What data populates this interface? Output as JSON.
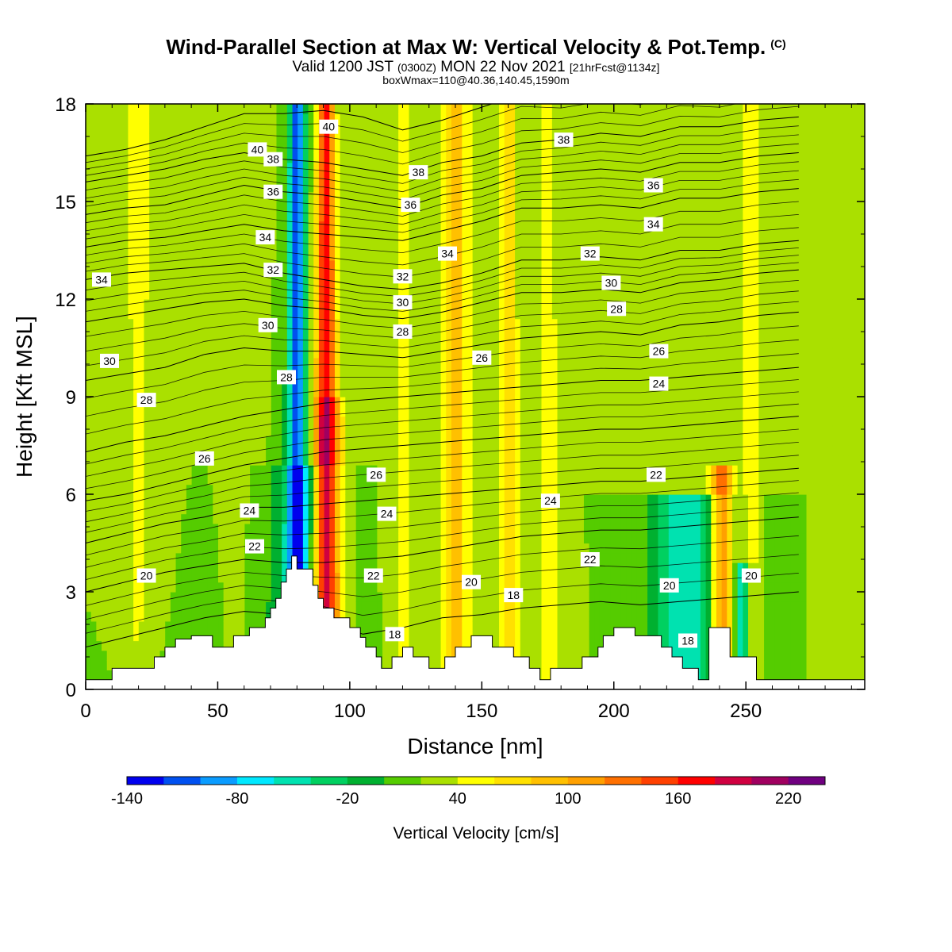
{
  "header": {
    "title": "Wind-Parallel Section at Max W: Vertical Velocity & Pot.Temp.",
    "copyright": "(C)",
    "valid_a": "Valid 1200 JST",
    "valid_z": "(0300Z)",
    "valid_b": "MON 22 Nov 2021",
    "forecast": "[21hrFcst@1134z]",
    "boxinfo": "boxWmax=110@40.36,140.45,1590m"
  },
  "chart_data": {
    "type": "heatmap",
    "xlabel": "Distance [nm]",
    "ylabel": "Height [Kft MSL]",
    "xlim": [
      0,
      295
    ],
    "ylim": [
      0,
      18
    ],
    "xticks": [
      "0",
      "50",
      "100",
      "150",
      "200",
      "250"
    ],
    "yticks": [
      "0",
      "3",
      "6",
      "9",
      "12",
      "15",
      "18"
    ],
    "colorbar": {
      "label": "Vertical Velocity [cm/s]",
      "tick_labels": [
        "-140",
        "-80",
        "-20",
        "40",
        "100",
        "160",
        "220"
      ],
      "tick_values": [
        -140,
        -80,
        -20,
        40,
        100,
        160,
        220
      ],
      "levels": [
        -140,
        -120,
        -100,
        -80,
        -60,
        -40,
        -20,
        0,
        20,
        40,
        60,
        80,
        100,
        120,
        140,
        160,
        180,
        200,
        220,
        240
      ],
      "colors": [
        "#0000ee",
        "#0050f0",
        "#0a9cff",
        "#00e8ff",
        "#00e2b0",
        "#00d060",
        "#00b030",
        "#55cc00",
        "#aae000",
        "#ffff00",
        "#ffe000",
        "#ffc000",
        "#ffa000",
        "#ff7000",
        "#ff4000",
        "#ff0000",
        "#d00040",
        "#a00060",
        "#700080"
      ]
    },
    "background_w": 20,
    "w_bands": [
      {
        "x": 20,
        "w": 28,
        "b0": 2,
        "b1": 14,
        "top": 18
      },
      {
        "x": 55,
        "w": 6,
        "b0": 4,
        "b1": 4,
        "top": 18
      },
      {
        "x": 57,
        "w": 22,
        "b0": 2,
        "b1": 8,
        "top": 18
      },
      {
        "x": 80,
        "w": -125,
        "b0": 4,
        "b1": 3,
        "top": 18
      },
      {
        "x": 83,
        "w": -40,
        "b0": 16,
        "b1": 10,
        "top": 7
      },
      {
        "x": 91,
        "w": 160,
        "b0": 5,
        "b1": 3,
        "top": 18
      },
      {
        "x": 93,
        "w": 50,
        "b0": 8,
        "b1": 4,
        "top": 9
      },
      {
        "x": 120,
        "w": 30,
        "b0": 5,
        "b1": 5,
        "top": 18
      },
      {
        "x": 140,
        "w": 80,
        "b0": 4,
        "b1": 4,
        "top": 18
      },
      {
        "x": 148,
        "w": 20,
        "b0": 4,
        "b1": 4,
        "top": 18
      },
      {
        "x": 160,
        "w": 65,
        "b0": 4,
        "b1": 3,
        "top": 18
      },
      {
        "x": 175,
        "w": 30,
        "b0": 8,
        "b1": 5,
        "top": 18
      },
      {
        "x": 212,
        "w": 20,
        "b0": 5,
        "b1": 5,
        "top": 18
      },
      {
        "x": 226,
        "w": -65,
        "b0": 16,
        "b1": 16,
        "top": 6
      },
      {
        "x": 241,
        "w": 130,
        "b0": 4,
        "b1": 4,
        "top": 7
      },
      {
        "x": 249,
        "w": -75,
        "b0": 3,
        "b1": 3,
        "top": 4
      },
      {
        "x": 252,
        "w": 45,
        "b0": 3,
        "b1": 3,
        "top": 18
      },
      {
        "x": 285,
        "w": 20,
        "b0": 5,
        "b1": 5,
        "top": 18
      }
    ],
    "terrain": {
      "x": [
        0,
        10,
        10,
        26,
        26,
        30,
        30,
        34,
        34,
        40,
        40,
        48,
        48,
        56,
        56,
        62,
        62,
        68,
        68,
        70,
        70,
        72,
        72,
        74,
        74,
        76,
        76,
        78,
        78,
        80,
        80,
        86,
        86,
        88,
        88,
        90,
        90,
        94,
        94,
        100,
        100,
        104,
        104,
        106,
        106,
        110,
        110,
        112,
        112,
        116,
        116,
        120,
        120,
        124,
        124,
        130,
        130,
        136,
        136,
        140,
        140,
        146,
        146,
        154,
        154,
        162,
        162,
        168,
        168,
        172,
        172,
        176,
        176,
        188,
        188,
        194,
        194,
        196,
        196,
        200,
        200,
        208,
        208,
        218,
        218,
        222,
        222,
        226,
        226,
        232,
        232,
        236,
        236,
        244,
        244,
        254,
        254,
        258,
        258,
        295
      ],
      "y": [
        0.3,
        0.3,
        0.65,
        0.65,
        1.0,
        1.0,
        1.3,
        1.3,
        1.55,
        1.55,
        1.65,
        1.65,
        1.3,
        1.3,
        1.65,
        1.65,
        1.9,
        1.9,
        2.2,
        2.2,
        2.5,
        2.5,
        2.8,
        2.8,
        3.3,
        3.3,
        3.7,
        3.7,
        4.1,
        4.1,
        3.7,
        3.7,
        3.2,
        3.2,
        2.8,
        2.8,
        2.5,
        2.5,
        2.2,
        2.2,
        1.9,
        1.9,
        1.6,
        1.6,
        1.3,
        1.3,
        1.0,
        1.0,
        0.65,
        0.65,
        1.0,
        1.0,
        1.3,
        1.3,
        1.0,
        1.0,
        0.65,
        0.65,
        1.0,
        1.0,
        1.3,
        1.3,
        1.65,
        1.65,
        1.3,
        1.3,
        1.0,
        1.0,
        0.65,
        0.65,
        0.3,
        0.3,
        0.65,
        0.65,
        1.0,
        1.0,
        1.3,
        1.3,
        1.65,
        1.65,
        1.9,
        1.9,
        1.65,
        1.65,
        1.3,
        1.3,
        1.0,
        1.0,
        0.65,
        0.65,
        0.3,
        0.3,
        1.9,
        1.9,
        1.0,
        1.0,
        0.3,
        0.3,
        0.3,
        0.3
      ]
    },
    "theta_contours": [
      {
        "label": "40",
        "y": [
          16.4,
          16.6,
          16.9,
          17.3,
          17.7,
          17.7,
          17.8,
          17.6,
          17.2,
          17.5,
          17.9,
          18.3,
          18.2,
          18.4,
          18.3,
          18.6,
          18.5,
          18.8,
          18.9
        ]
      },
      {
        "label": "38",
        "y": [
          15.6,
          15.8,
          16.0,
          16.3,
          16.5,
          16.3,
          16.2,
          16.0,
          15.8,
          16.2,
          16.4,
          16.8,
          16.9,
          17.1,
          17.0,
          17.3,
          17.3,
          17.5,
          17.6
        ]
      },
      {
        "label": "36",
        "y": [
          14.6,
          14.8,
          14.9,
          15.2,
          15.5,
          15.3,
          15.2,
          15.0,
          14.8,
          15.2,
          15.4,
          15.8,
          15.9,
          16.0,
          15.9,
          16.2,
          16.2,
          16.4,
          16.5
        ]
      },
      {
        "label": "34",
        "y": [
          13.6,
          13.8,
          13.9,
          14.1,
          14.3,
          14.1,
          14.0,
          13.9,
          13.8,
          14.1,
          14.4,
          14.8,
          14.8,
          14.9,
          14.8,
          15.1,
          15.1,
          15.3,
          15.4
        ]
      },
      {
        "label": "32",
        "y": [
          12.6,
          12.8,
          12.9,
          13.0,
          13.1,
          12.8,
          12.6,
          12.4,
          12.3,
          12.5,
          12.8,
          13.2,
          13.2,
          13.3,
          13.2,
          13.5,
          13.5,
          13.7,
          13.8
        ]
      },
      {
        "label": "30",
        "y": [
          11.3,
          11.5,
          11.7,
          11.9,
          12.0,
          11.8,
          11.7,
          11.5,
          11.4,
          11.6,
          11.9,
          12.2,
          12.2,
          12.3,
          12.2,
          12.5,
          12.6,
          12.8,
          12.9
        ]
      },
      {
        "label": "28",
        "y": [
          9.5,
          9.7,
          9.9,
          10.3,
          10.5,
          10.4,
          10.4,
          10.3,
          10.2,
          10.4,
          10.6,
          10.8,
          10.9,
          11.0,
          10.9,
          11.2,
          11.3,
          11.5,
          11.6
        ]
      },
      {
        "label": "26",
        "y": [
          7.3,
          7.6,
          7.8,
          8.1,
          8.4,
          8.6,
          8.8,
          8.9,
          9.0,
          9.1,
          9.2,
          9.3,
          9.4,
          9.5,
          9.5,
          9.6,
          9.7,
          9.8,
          9.9
        ]
      },
      {
        "label": "24",
        "y": [
          5.8,
          6.0,
          6.3,
          6.6,
          6.9,
          7.1,
          7.3,
          7.4,
          7.5,
          7.6,
          7.7,
          7.8,
          7.9,
          8.0,
          8.0,
          8.1,
          8.2,
          8.3,
          8.4
        ]
      },
      {
        "label": "22",
        "y": [
          4.5,
          4.8,
          5.1,
          5.3,
          5.6,
          5.6,
          5.7,
          5.8,
          5.9,
          6.0,
          6.1,
          6.2,
          6.3,
          6.4,
          6.4,
          6.5,
          6.6,
          6.7,
          6.8
        ]
      },
      {
        "label": "20",
        "y": [
          3.0,
          3.3,
          3.6,
          3.8,
          4.0,
          3.9,
          3.9,
          4.0,
          4.1,
          4.3,
          4.5,
          4.7,
          4.8,
          4.9,
          4.9,
          5.0,
          5.1,
          5.2,
          5.3
        ]
      },
      {
        "label": "18",
        "y": [
          1.3,
          1.6,
          1.9,
          2.2,
          2.4,
          2.3,
          2.1,
          1.7,
          1.9,
          2.2,
          2.3,
          2.5,
          2.6,
          2.7,
          2.6,
          2.7,
          2.8,
          2.9,
          3.0
        ]
      }
    ],
    "theta_x": [
      0,
      15,
      30,
      45,
      60,
      75,
      90,
      105,
      120,
      135,
      150,
      165,
      180,
      195,
      210,
      225,
      240,
      255,
      270
    ],
    "contour_labels": [
      {
        "text": "40",
        "x": 65,
        "y": 16.6
      },
      {
        "text": "40",
        "x": 92,
        "y": 17.3
      },
      {
        "text": "38",
        "x": 181,
        "y": 16.9
      },
      {
        "text": "38",
        "x": 71,
        "y": 16.3
      },
      {
        "text": "38",
        "x": 126,
        "y": 15.9
      },
      {
        "text": "36",
        "x": 215,
        "y": 15.5
      },
      {
        "text": "36",
        "x": 71,
        "y": 15.3
      },
      {
        "text": "36",
        "x": 123,
        "y": 14.9
      },
      {
        "text": "34",
        "x": 215,
        "y": 14.3
      },
      {
        "text": "34",
        "x": 68,
        "y": 13.9
      },
      {
        "text": "34",
        "x": 137,
        "y": 13.4
      },
      {
        "text": "34",
        "x": 6,
        "y": 12.6
      },
      {
        "text": "32",
        "x": 71,
        "y": 12.9
      },
      {
        "text": "32",
        "x": 120,
        "y": 12.7
      },
      {
        "text": "32",
        "x": 191,
        "y": 13.4
      },
      {
        "text": "30",
        "x": 120,
        "y": 11.9
      },
      {
        "text": "30",
        "x": 199,
        "y": 12.5
      },
      {
        "text": "30",
        "x": 69,
        "y": 11.2
      },
      {
        "text": "30",
        "x": 9,
        "y": 10.1
      },
      {
        "text": "28",
        "x": 201,
        "y": 11.7
      },
      {
        "text": "28",
        "x": 120,
        "y": 11.0
      },
      {
        "text": "28",
        "x": 76,
        "y": 9.6
      },
      {
        "text": "28",
        "x": 23,
        "y": 8.9
      },
      {
        "text": "26",
        "x": 217,
        "y": 10.4
      },
      {
        "text": "26",
        "x": 150,
        "y": 10.2
      },
      {
        "text": "26",
        "x": 45,
        "y": 7.1
      },
      {
        "text": "26",
        "x": 110,
        "y": 6.6
      },
      {
        "text": "24",
        "x": 217,
        "y": 9.4
      },
      {
        "text": "24",
        "x": 62,
        "y": 5.5
      },
      {
        "text": "24",
        "x": 114,
        "y": 5.4
      },
      {
        "text": "24",
        "x": 176,
        "y": 5.8
      },
      {
        "text": "22",
        "x": 216,
        "y": 6.6
      },
      {
        "text": "22",
        "x": 64,
        "y": 4.4
      },
      {
        "text": "22",
        "x": 109,
        "y": 3.5
      },
      {
        "text": "22",
        "x": 191,
        "y": 4.0
      },
      {
        "text": "20",
        "x": 23,
        "y": 3.5
      },
      {
        "text": "20",
        "x": 146,
        "y": 3.3
      },
      {
        "text": "20",
        "x": 221,
        "y": 3.2
      },
      {
        "text": "20",
        "x": 252,
        "y": 3.5
      },
      {
        "text": "18",
        "x": 162,
        "y": 2.9
      },
      {
        "text": "18",
        "x": 117,
        "y": 1.7
      },
      {
        "text": "18",
        "x": 228,
        "y": 1.5
      }
    ]
  }
}
